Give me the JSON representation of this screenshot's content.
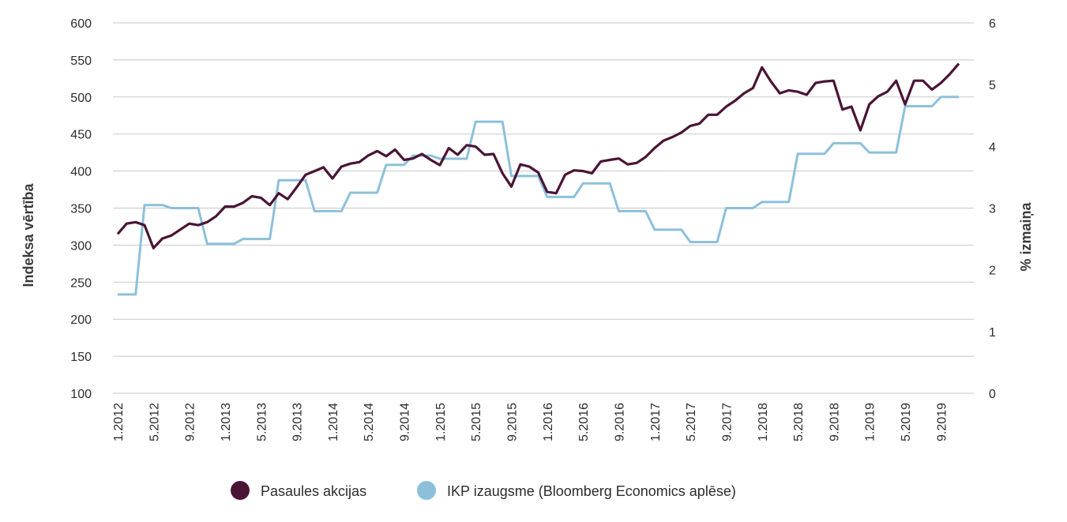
{
  "colors": {
    "stocks": "#4a1435",
    "gdp": "#8cc0da",
    "grid": "#c8c8c8"
  },
  "chart_data": {
    "type": "line",
    "title": "",
    "ylabel": "Indeksa vērtība",
    "y2label": "% izmaiņa",
    "ylim": [
      100,
      600
    ],
    "y2lim": [
      0,
      6
    ],
    "yticks": [
      100,
      150,
      200,
      250,
      300,
      350,
      400,
      450,
      500,
      550,
      600
    ],
    "y2ticks": [
      0,
      1,
      2,
      3,
      4,
      5,
      6
    ],
    "x_tick_labels": [
      "1.2012",
      "5.2012",
      "9.2012",
      "1.2013",
      "5.2013",
      "9.2013",
      "1.2014",
      "5.2014",
      "9.2014",
      "1.2015",
      "5.2015",
      "9.2015",
      "1.2016",
      "5.2016",
      "9.2016",
      "1.2017",
      "5.2017",
      "9.2017",
      "1.2018",
      "5.2018",
      "9.2018",
      "1.2019",
      "5.2019",
      "9.2019"
    ],
    "x_start": "1.2012",
    "x_end": "12.2019",
    "grid": true,
    "legend_position": "bottom",
    "series": [
      {
        "name": "Pasaules akcijas",
        "axis": "left",
        "values": [
          315,
          329,
          331,
          327,
          296,
          309,
          313,
          321,
          329,
          327,
          331,
          339,
          352,
          352,
          357,
          366,
          364,
          354,
          370,
          362,
          378,
          395,
          400,
          405,
          390,
          406,
          410,
          412,
          421,
          427,
          420,
          429,
          415,
          417,
          423,
          415,
          408,
          431,
          422,
          435,
          433,
          422,
          423,
          397,
          379,
          409,
          406,
          398,
          372,
          370,
          395,
          401,
          400,
          397,
          413,
          415,
          417,
          409,
          411,
          419,
          431,
          441,
          446,
          452,
          461,
          464,
          476,
          476,
          487,
          495,
          505,
          512,
          540,
          521,
          505,
          509,
          507,
          503,
          519,
          521,
          522,
          483,
          487,
          455,
          490,
          501,
          507,
          522,
          490,
          522,
          522,
          510,
          519,
          531,
          545
        ]
      },
      {
        "name": "IKP izaugsme (Bloomberg Economics aplēse)",
        "axis": "right",
        "values": [
          1.6,
          1.6,
          1.6,
          3.05,
          3.05,
          3.05,
          3.0,
          3.0,
          3.0,
          3.0,
          2.42,
          2.42,
          2.42,
          2.42,
          2.5,
          2.5,
          2.5,
          2.5,
          3.45,
          3.45,
          3.45,
          3.45,
          2.95,
          2.95,
          2.95,
          2.95,
          3.25,
          3.25,
          3.25,
          3.25,
          3.7,
          3.7,
          3.7,
          3.85,
          3.85,
          3.85,
          3.8,
          3.8,
          3.8,
          3.8,
          4.4,
          4.4,
          4.4,
          4.4,
          3.52,
          3.52,
          3.52,
          3.52,
          3.18,
          3.18,
          3.18,
          3.18,
          3.4,
          3.4,
          3.4,
          3.4,
          2.95,
          2.95,
          2.95,
          2.95,
          2.65,
          2.65,
          2.65,
          2.65,
          2.45,
          2.45,
          2.45,
          2.45,
          3.0,
          3.0,
          3.0,
          3.0,
          3.1,
          3.1,
          3.1,
          3.1,
          3.88,
          3.88,
          3.88,
          3.88,
          4.05,
          4.05,
          4.05,
          4.05,
          3.9,
          3.9,
          3.9,
          3.9,
          4.65,
          4.65,
          4.65,
          4.65,
          4.8,
          4.8,
          4.8
        ]
      }
    ]
  }
}
